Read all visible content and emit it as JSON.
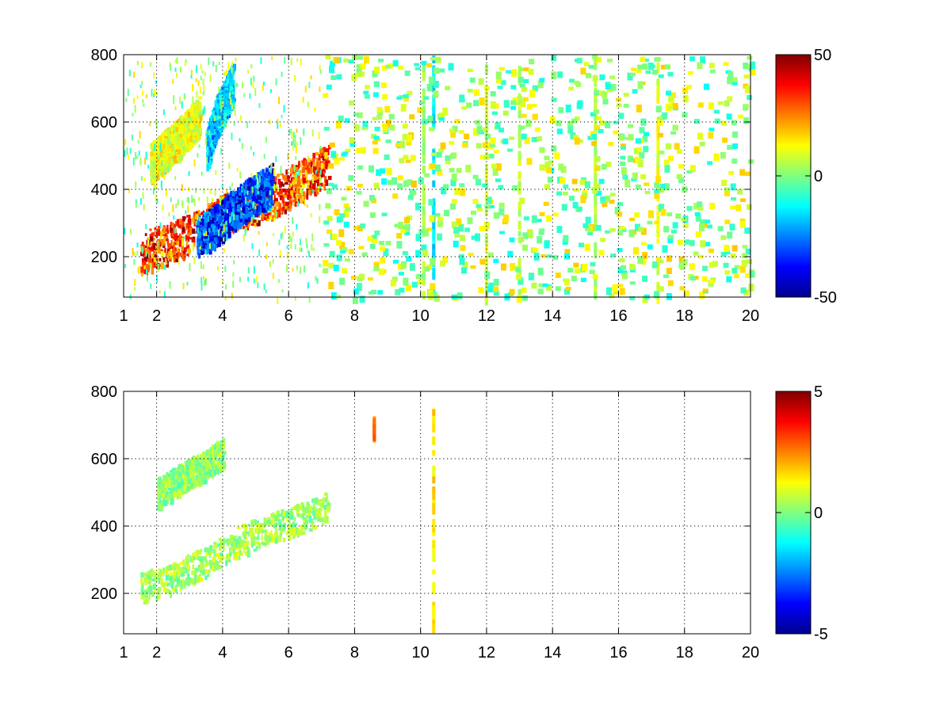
{
  "chart_data": [
    {
      "type": "heatmap",
      "name": "top-panel",
      "title": "",
      "xlabel": "",
      "ylabel": "",
      "xlim": [
        1,
        20
      ],
      "ylim": [
        80,
        800
      ],
      "grid": true,
      "colormap": "jet",
      "x_ticks": [
        1,
        2,
        4,
        6,
        8,
        10,
        12,
        14,
        16,
        18,
        20
      ],
      "y_ticks": [
        200,
        400,
        600,
        800
      ],
      "colorbar": {
        "min": -50,
        "max": 50,
        "ticks": [
          -50,
          0,
          50
        ]
      },
      "regions": [
        {
          "description_value": "positive ridge",
          "x": [
            1.5,
            3,
            4,
            5.5,
            6.5,
            7.2
          ],
          "y": [
            215,
            270,
            330,
            380,
            440,
            480
          ],
          "value": 45
        },
        {
          "description_value": "negative ridge",
          "x": [
            3.2,
            3.8,
            4.5,
            5.5
          ],
          "y": [
            260,
            300,
            360,
            420
          ],
          "value": -45
        },
        {
          "description_value": "upper negative band",
          "x": [
            3.5,
            3.8,
            4.3
          ],
          "y": [
            520,
            620,
            720
          ],
          "value": -25
        },
        {
          "description_value": "upper positive band",
          "x": [
            1.8,
            2.6,
            3.3
          ],
          "y": [
            480,
            550,
            620
          ],
          "value": 15
        }
      ],
      "columns": [
        {
          "x": 10.1,
          "value": 5
        },
        {
          "x": 10.4,
          "value": -15
        },
        {
          "x": 12,
          "value": 8
        },
        {
          "x": 17.2,
          "value": 10
        },
        {
          "x": 13,
          "value": 6
        },
        {
          "x": 15.3,
          "value": 5
        }
      ]
    },
    {
      "type": "heatmap",
      "name": "bottom-panel",
      "title": "",
      "xlabel": "",
      "ylabel": "",
      "xlim": [
        1,
        20
      ],
      "ylim": [
        80,
        800
      ],
      "grid": true,
      "colormap": "jet",
      "x_ticks": [
        1,
        2,
        4,
        6,
        8,
        10,
        12,
        14,
        16,
        18,
        20
      ],
      "y_ticks": [
        200,
        400,
        600,
        800
      ],
      "colorbar": {
        "min": -5,
        "max": 5,
        "ticks": [
          -5,
          0,
          5
        ]
      },
      "regions": [
        {
          "description_value": "lower cluster",
          "x": [
            1.5,
            2.5,
            3.5,
            4.5,
            5.5,
            6.5,
            7.2
          ],
          "y": [
            220,
            250,
            300,
            360,
            400,
            430,
            460
          ],
          "value": 0.5
        },
        {
          "description_value": "upper cluster",
          "x": [
            2,
            3,
            4
          ],
          "y": [
            500,
            560,
            620
          ],
          "value": 0.2
        }
      ],
      "columns": [
        {
          "x": 10.4,
          "value": 1.5,
          "ymin": 100,
          "ymax": 760
        },
        {
          "x": 8.6,
          "value": 2.5,
          "ymin": 680,
          "ymax": 730
        }
      ]
    }
  ]
}
